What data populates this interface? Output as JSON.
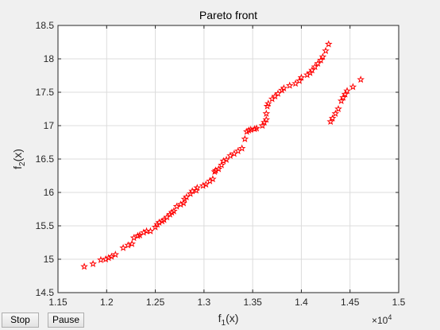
{
  "controls": {
    "stop_label": "Stop",
    "pause_label": "Pause"
  },
  "chart_data": {
    "type": "scatter",
    "title": "Pareto front",
    "xlabel": "f_1(x)",
    "ylabel": "f_2(x)",
    "x_exponent_label": "×10^4",
    "xlim": [
      11500,
      15000
    ],
    "ylim": [
      14.5,
      18.5
    ],
    "xticks": [
      11500,
      12000,
      12500,
      13000,
      13500,
      14000,
      14500,
      15000
    ],
    "xtick_labels": [
      "1.15",
      "1.2",
      "1.25",
      "1.3",
      "1.35",
      "1.4",
      "1.45",
      "1.5"
    ],
    "yticks": [
      14.5,
      15,
      15.5,
      16,
      16.5,
      17,
      17.5,
      18,
      18.5
    ],
    "ytick_labels": [
      "14.5",
      "15",
      "15.5",
      "16",
      "16.5",
      "17",
      "17.5",
      "18",
      "18.5"
    ],
    "grid": true,
    "marker": "pentagram",
    "marker_color": "#ff0000",
    "series": [
      {
        "x": [
          11770,
          11860,
          11940,
          11990,
          12020,
          12050,
          12090,
          12170,
          12220,
          12260,
          12280,
          12320,
          12340,
          12380,
          12410,
          12450,
          12500,
          12520,
          12540,
          12570,
          12590,
          12620,
          12650,
          12670,
          12690,
          12720,
          12760,
          12790,
          12800,
          12820,
          12860,
          12880,
          12920,
          12930,
          12990,
          13020,
          13060,
          13090,
          13110,
          13120,
          13150,
          13180,
          13200,
          13230,
          13270,
          13310,
          13350,
          13390,
          13420,
          13440,
          13460,
          13480,
          13520,
          13540,
          13600,
          13620,
          13640,
          13640,
          13650,
          13660,
          13700,
          13730,
          13760,
          13800,
          13820,
          13880,
          13940,
          13980,
          14000,
          14060,
          14090,
          14110,
          14140,
          14170,
          14200,
          14220,
          14250,
          14280,
          14300,
          14320,
          14350,
          14380,
          14410,
          14430,
          14450,
          14470,
          14530,
          14610
        ],
        "y": [
          14.89,
          14.93,
          14.99,
          15.0,
          15.02,
          15.04,
          15.07,
          15.17,
          15.21,
          15.23,
          15.32,
          15.35,
          15.36,
          15.4,
          15.42,
          15.42,
          15.48,
          15.52,
          15.55,
          15.57,
          15.59,
          15.63,
          15.67,
          15.7,
          15.72,
          15.79,
          15.82,
          15.84,
          15.9,
          15.93,
          15.98,
          16.02,
          16.03,
          16.07,
          16.1,
          16.12,
          16.17,
          16.2,
          16.31,
          16.33,
          16.35,
          16.41,
          16.47,
          16.49,
          16.55,
          16.58,
          16.62,
          16.66,
          16.8,
          16.91,
          16.93,
          16.94,
          16.95,
          16.96,
          17.0,
          17.05,
          17.09,
          17.18,
          17.29,
          17.33,
          17.4,
          17.44,
          17.48,
          17.53,
          17.56,
          17.6,
          17.63,
          17.67,
          17.72,
          17.76,
          17.79,
          17.83,
          17.88,
          17.93,
          17.98,
          18.03,
          18.12,
          18.22,
          17.06,
          17.11,
          17.18,
          17.25,
          17.37,
          17.42,
          17.47,
          17.52,
          17.58,
          17.69
        ]
      }
    ]
  }
}
